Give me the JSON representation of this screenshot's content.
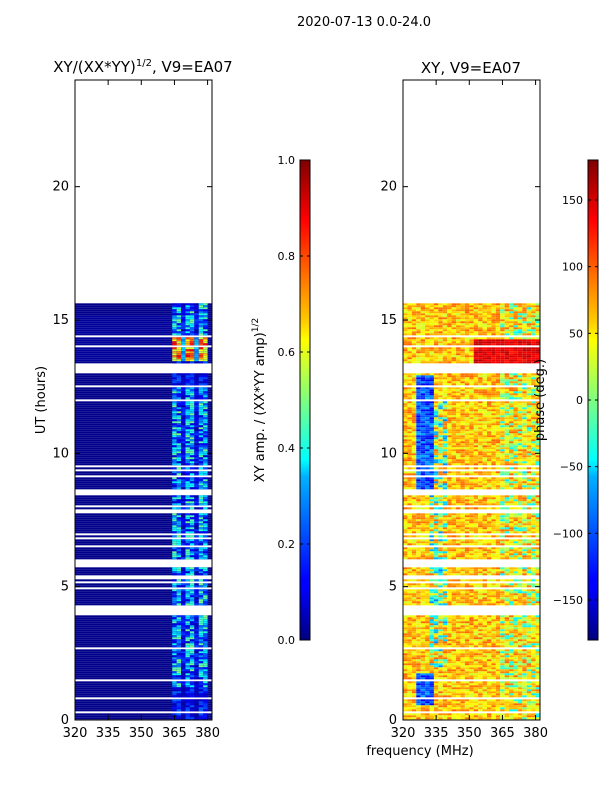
{
  "figure": {
    "suptitle": "2020-07-13 0.0-24.0",
    "shared_xlabel": "frequency (MHz)"
  },
  "colors": {
    "jet": [
      "#00007f",
      "#0000ff",
      "#007fff",
      "#00ffff",
      "#7fff7f",
      "#ffff00",
      "#ff7f00",
      "#ff0000",
      "#7f0000"
    ]
  },
  "chart_data": [
    {
      "type": "heatmap",
      "title": "XY/(XX*YY)",
      "title_exponent": "1/2",
      "title_suffix": ", V9=EA07",
      "xlabel": "",
      "ylabel": "UT (hours)",
      "xlim": [
        320,
        382
      ],
      "ylim": [
        0,
        24
      ],
      "xticks": [
        320,
        335,
        350,
        365,
        380
      ],
      "yticks": [
        0,
        5,
        10,
        15,
        20
      ],
      "data_extent_hours": [
        0,
        15.7
      ],
      "bright_band_mhz": [
        364,
        380
      ],
      "colorbar": {
        "label": "XY amp. / (XX*YY amp)",
        "label_exponent": "1/2",
        "range": [
          0.0,
          1.0
        ],
        "ticks": [
          "0.0",
          "0.2",
          "0.4",
          "0.6",
          "0.8",
          "1.0"
        ]
      }
    },
    {
      "type": "heatmap",
      "title": "XY, V9=EA07",
      "xlabel": "",
      "ylabel": "",
      "xlim": [
        320,
        382
      ],
      "ylim": [
        0,
        24
      ],
      "xticks": [
        320,
        335,
        350,
        365,
        380
      ],
      "yticks": [
        0,
        5,
        10,
        15,
        20
      ],
      "data_extent_hours": [
        0,
        15.7
      ],
      "colorbar": {
        "label": "phase (deg.)",
        "range": [
          -180,
          180
        ],
        "ticks": [
          "−150",
          "−100",
          "−50",
          "0",
          "50",
          "100",
          "150"
        ]
      }
    }
  ]
}
